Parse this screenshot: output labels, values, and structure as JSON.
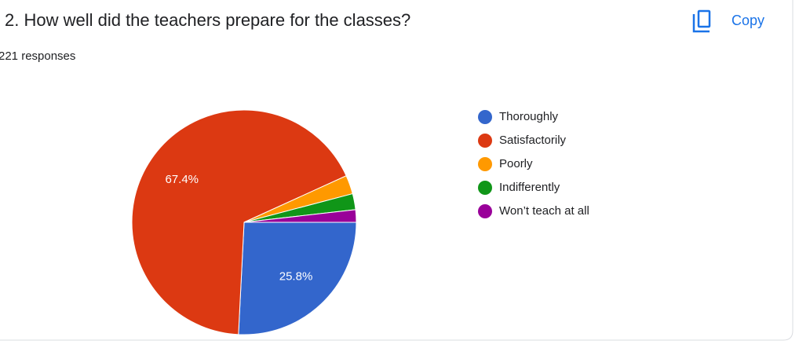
{
  "header": {
    "title": "2. How well did the teachers prepare for the classes?",
    "responses": "221 responses",
    "copy": "Copy"
  },
  "chart_data": {
    "type": "pie",
    "categories": [
      "Thoroughly",
      "Satisfactorily",
      "Poorly",
      "Indifferently",
      "Won’t teach at all"
    ],
    "values": [
      25.8,
      67.4,
      2.7,
      2.3,
      1.8
    ],
    "value_labels": [
      "25.8%",
      "67.4%",
      null,
      null,
      null
    ],
    "colors": [
      "#3366cc",
      "#dc3912",
      "#ff9900",
      "#109618",
      "#990099"
    ],
    "legend": "right"
  }
}
